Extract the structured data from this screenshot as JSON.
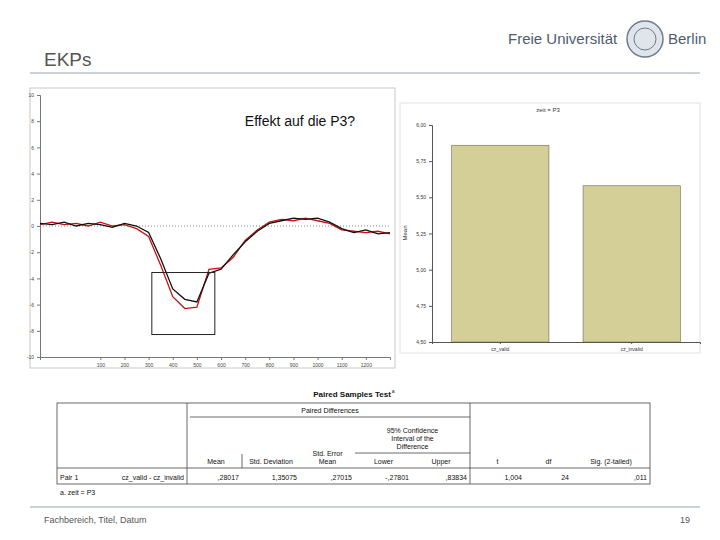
{
  "slide": {
    "title": "EKPs",
    "logo": "Freie Universität Berlin",
    "footer": "Fachbereich, Titel, Datum",
    "page": "19"
  },
  "chart_data": [
    {
      "type": "line",
      "annotation": "Effekt auf die P3?",
      "x": [
        -150,
        -100,
        -50,
        0,
        50,
        100,
        150,
        200,
        250,
        300,
        350,
        400,
        450,
        500,
        550,
        600,
        650,
        700,
        750,
        800,
        850,
        900,
        950,
        1000,
        1050,
        1100,
        1150,
        1200,
        1250,
        1300
      ],
      "series": [
        {
          "color": "#cc1111",
          "values": [
            0.1,
            0.3,
            0.1,
            0.2,
            0,
            0.3,
            0,
            0.1,
            -0.2,
            -0.8,
            -3,
            -5.4,
            -6.3,
            -6.2,
            -3.3,
            -3.2,
            -2.4,
            -1.1,
            -0.3,
            0.3,
            0.5,
            0.4,
            0.6,
            0.4,
            0.2,
            -0.3,
            -0.4,
            -0.5,
            -0.4,
            -0.6
          ]
        },
        {
          "color": "#111111",
          "values": [
            0.2,
            0.1,
            0.3,
            0,
            0.2,
            0.1,
            -0.1,
            0.2,
            0,
            -0.5,
            -2.5,
            -4.8,
            -5.6,
            -5.8,
            -3.6,
            -3.3,
            -2.2,
            -1.2,
            -0.4,
            0.2,
            0.4,
            0.6,
            0.5,
            0.6,
            0.3,
            -0.2,
            -0.5,
            -0.3,
            -0.6,
            -0.5
          ]
        }
      ],
      "xlim": [
        -150,
        1300
      ],
      "xticks": [
        100,
        200,
        300,
        400,
        500,
        600,
        700,
        800,
        900,
        1000,
        1100,
        1200
      ],
      "ylim": [
        -10,
        10
      ],
      "yticks": [
        -10,
        -8,
        -6,
        -4,
        -2,
        0,
        2,
        4,
        6,
        8,
        10
      ],
      "grid": false
    },
    {
      "type": "bar",
      "title": "zeit = P3",
      "ylabel": "Mean",
      "categories": [
        "cz_valid",
        "cz_invalid"
      ],
      "values": [
        5.86,
        5.58
      ],
      "color": "#d4cf96",
      "ylim": [
        4.5,
        6.0
      ],
      "yticks": [
        {
          "value": 4.5,
          "label": "4,50"
        },
        {
          "value": 4.75,
          "label": "4,75"
        },
        {
          "value": 5,
          "label": "5,00"
        },
        {
          "value": 5.25,
          "label": "5,25"
        },
        {
          "value": 5.5,
          "label": "5,50"
        },
        {
          "value": 5.75,
          "label": "5,75"
        },
        {
          "value": 6,
          "label": "6,00"
        }
      ],
      "grid": false
    }
  ],
  "table": {
    "title": "Paired Samples Test",
    "title_note": "a",
    "group_header": "Paired Differences",
    "ci_header": "95% Confidence Interval of the Difference",
    "columns": [
      "Mean",
      "Std. Deviation",
      "Std. Error Mean",
      "Lower",
      "Upper",
      "t",
      "df",
      "Sig. (2-tailed)"
    ],
    "rows": [
      {
        "pair": "Pair 1",
        "label": "cz_valid - cz_invalid",
        "cells": [
          ",28017",
          "1,35075",
          ",27015",
          "-,27801",
          ",83834",
          "1,004",
          "24",
          ",011"
        ]
      }
    ],
    "footnote": "a. zeit = P3"
  }
}
